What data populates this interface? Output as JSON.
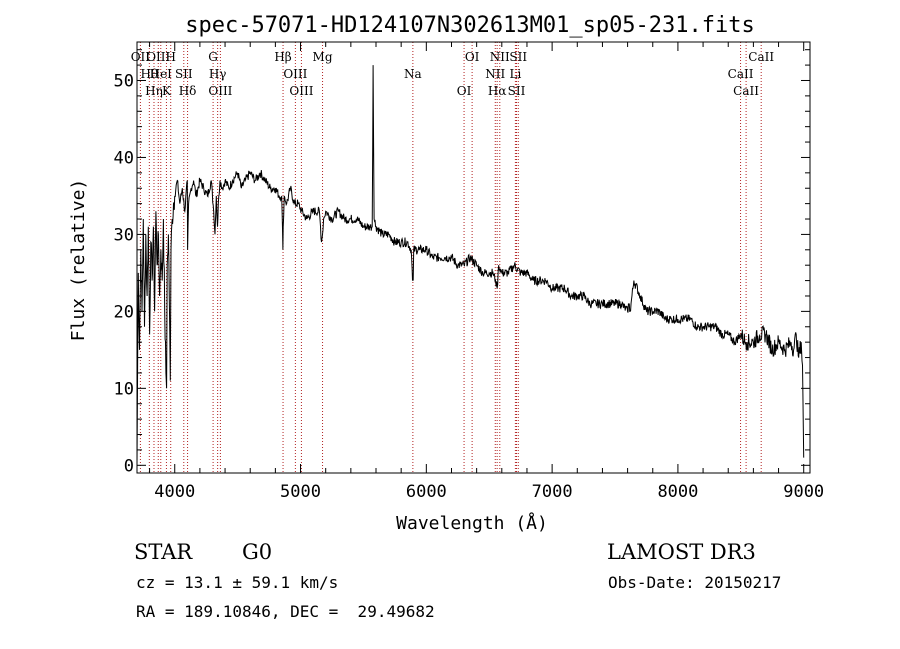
{
  "chart_data": {
    "type": "line",
    "title": "spec-57071-HD124107N302613M01_sp05-231.fits",
    "xlabel": "Wavelength (Å)",
    "ylabel": "Flux (relative)",
    "xlim": [
      3700,
      9050
    ],
    "ylim": [
      -1,
      55
    ],
    "xticks": [
      4000,
      5000,
      6000,
      7000,
      8000,
      9000
    ],
    "yticks": [
      0,
      10,
      20,
      30,
      40,
      50
    ],
    "grid": false,
    "series": [
      {
        "name": "flux",
        "x": [
          3700,
          3710,
          3720,
          3730,
          3740,
          3750,
          3760,
          3770,
          3780,
          3790,
          3800,
          3810,
          3820,
          3830,
          3840,
          3850,
          3860,
          3870,
          3880,
          3890,
          3900,
          3910,
          3920,
          3930,
          3935,
          3940,
          3950,
          3960,
          3965,
          3970,
          3980,
          3990,
          4000,
          4020,
          4040,
          4060,
          4080,
          4100,
          4102,
          4110,
          4130,
          4150,
          4170,
          4200,
          4230,
          4260,
          4290,
          4310,
          4320,
          4330,
          4340,
          4350,
          4360,
          4380,
          4400,
          4430,
          4460,
          4500,
          4530,
          4560,
          4600,
          4640,
          4680,
          4720,
          4760,
          4800,
          4830,
          4850,
          4860,
          4862,
          4870,
          4890,
          4920,
          4950,
          4980,
          5010,
          5050,
          5100,
          5150,
          5167,
          5175,
          5183,
          5200,
          5250,
          5300,
          5350,
          5400,
          5450,
          5500,
          5550,
          5570,
          5577,
          5585,
          5600,
          5650,
          5700,
          5750,
          5800,
          5850,
          5880,
          5890,
          5896,
          5900,
          5950,
          6000,
          6050,
          6100,
          6150,
          6200,
          6250,
          6300,
          6350,
          6400,
          6450,
          6500,
          6530,
          6550,
          6563,
          6575,
          6600,
          6650,
          6700,
          6750,
          6800,
          6850,
          6900,
          6950,
          7000,
          7050,
          7100,
          7150,
          7200,
          7250,
          7300,
          7350,
          7400,
          7450,
          7500,
          7550,
          7600,
          7610,
          7620,
          7650,
          7700,
          7750,
          7800,
          7850,
          7900,
          7950,
          8000,
          8050,
          8100,
          8150,
          8200,
          8250,
          8300,
          8350,
          8400,
          8450,
          8500,
          8540,
          8550,
          8600,
          8650,
          8700,
          8750,
          8800,
          8850,
          8900,
          8920,
          8940,
          8960,
          8980,
          8990,
          9000
        ],
        "y": [
          0,
          25,
          15,
          28,
          20,
          32,
          18,
          30,
          22,
          31,
          17,
          29,
          24,
          31,
          20,
          33,
          26,
          30,
          22,
          28,
          24,
          32,
          20,
          12,
          10,
          26,
          30,
          18,
          11,
          28,
          32,
          34,
          35,
          37,
          34,
          36,
          33,
          37,
          28,
          34,
          36,
          37,
          35,
          37,
          36,
          35,
          37,
          33,
          30,
          35,
          31,
          35,
          37,
          36,
          37,
          36,
          37,
          38,
          36,
          37,
          38,
          37,
          38,
          37,
          36,
          36,
          35,
          35,
          28,
          31,
          35,
          34,
          36,
          34,
          34,
          33,
          32,
          33,
          33,
          29,
          30,
          32,
          33,
          32,
          33,
          32,
          32,
          32,
          31,
          31,
          31,
          52,
          32,
          31,
          30,
          30,
          29,
          29,
          29,
          28,
          24,
          24,
          28,
          28,
          28,
          27,
          27,
          27,
          27,
          26,
          26,
          27,
          26,
          25,
          25,
          25,
          24,
          23,
          26,
          25,
          25,
          26,
          25,
          25,
          24,
          24,
          24,
          23,
          23,
          23,
          22,
          22,
          22,
          21,
          21,
          21,
          21,
          21,
          21,
          20,
          21,
          20,
          24,
          22,
          20,
          20,
          20,
          19,
          19,
          19,
          19,
          19,
          18,
          18,
          18,
          18,
          17,
          17,
          16,
          17,
          16,
          16,
          16,
          17,
          17,
          15,
          16,
          15,
          16,
          15,
          17,
          14,
          16,
          13,
          1
        ]
      }
    ],
    "emission_lines": [
      {
        "label": "Hθ",
        "wave": 3798
      },
      {
        "label": "OII",
        "wave": 3727
      },
      {
        "label": "Hη",
        "wave": 3835
      },
      {
        "label": "OIII",
        "wave": 3869
      },
      {
        "label": "HeI",
        "wave": 3889
      },
      {
        "label": "K",
        "wave": 3934
      },
      {
        "label": "H",
        "wave": 3968
      },
      {
        "label": "SII",
        "wave": 4072
      },
      {
        "label": "Hδ",
        "wave": 4102
      },
      {
        "label": "G",
        "wave": 4305
      },
      {
        "label": "Hγ",
        "wave": 4341
      },
      {
        "label": "OIII",
        "wave": 4363
      },
      {
        "label": "Hβ",
        "wave": 4861
      },
      {
        "label": "OIII",
        "wave": 4959
      },
      {
        "label": "OIII",
        "wave": 5007
      },
      {
        "label": "Mg",
        "wave": 5175
      },
      {
        "label": "Na",
        "wave": 5893
      },
      {
        "label": "OI",
        "wave": 6300
      },
      {
        "label": "OI",
        "wave": 6364
      },
      {
        "label": "NII",
        "wave": 6548
      },
      {
        "label": "Hα",
        "wave": 6563
      },
      {
        "label": "NII",
        "wave": 6584
      },
      {
        "label": "Li",
        "wave": 6708
      },
      {
        "label": "SII",
        "wave": 6717
      },
      {
        "label": "SII",
        "wave": 6731
      },
      {
        "label": "CaII",
        "wave": 8498
      },
      {
        "label": "CaII",
        "wave": 8542
      },
      {
        "label": "CaII",
        "wave": 8662
      }
    ],
    "colors": {
      "line": "#000000",
      "emission_marker": "#b22222",
      "axes": "#000000"
    }
  },
  "info": {
    "class_label": "STAR",
    "subclass": "G0",
    "survey": "LAMOST DR3",
    "redshift": "cz = 13.1 ± 59.1 km/s",
    "obs_date": "Obs-Date: 20150217",
    "coords": "RA = 189.10846, DEC =  29.49682"
  }
}
